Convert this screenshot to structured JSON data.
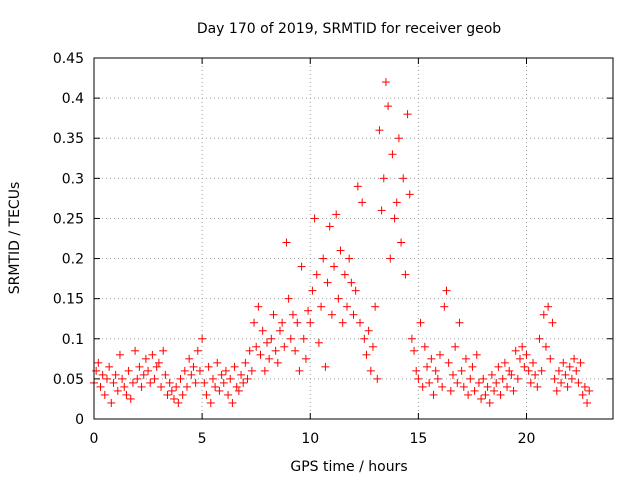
{
  "chart_data": {
    "type": "scatter",
    "title": "Day 170 of 2019, SRMTID for receiver geob",
    "xlabel": "GPS time / hours",
    "ylabel": "SRMTID / TECUs",
    "xlim": [
      0,
      24
    ],
    "ylim": [
      0,
      0.45
    ],
    "xticks": [
      0,
      5,
      10,
      15,
      20
    ],
    "xtick_labels": [
      "0",
      "5",
      "10",
      "15",
      "20"
    ],
    "yticks": [
      0,
      0.05,
      0.1,
      0.15,
      0.2,
      0.25,
      0.3,
      0.35,
      0.4,
      0.45
    ],
    "ytick_labels": [
      "0",
      "0.05",
      "0.1",
      "0.15",
      "0.2",
      "0.25",
      "0.3",
      "0.35",
      "0.4",
      "0.45"
    ],
    "grid": true,
    "marker": "plus",
    "color": "#ff0000",
    "series": [
      {
        "name": "SRMTID",
        "points": [
          [
            0.0,
            0.045
          ],
          [
            0.1,
            0.06
          ],
          [
            0.2,
            0.07
          ],
          [
            0.3,
            0.04
          ],
          [
            0.4,
            0.055
          ],
          [
            0.5,
            0.03
          ],
          [
            0.6,
            0.05
          ],
          [
            0.7,
            0.065
          ],
          [
            0.8,
            0.02
          ],
          [
            0.9,
            0.045
          ],
          [
            1.0,
            0.055
          ],
          [
            1.1,
            0.035
          ],
          [
            1.2,
            0.08
          ],
          [
            1.3,
            0.05
          ],
          [
            1.4,
            0.04
          ],
          [
            1.5,
            0.03
          ],
          [
            1.6,
            0.06
          ],
          [
            1.7,
            0.025
          ],
          [
            1.8,
            0.045
          ],
          [
            1.9,
            0.085
          ],
          [
            2.0,
            0.05
          ],
          [
            2.1,
            0.065
          ],
          [
            2.2,
            0.04
          ],
          [
            2.3,
            0.055
          ],
          [
            2.4,
            0.075
          ],
          [
            2.5,
            0.06
          ],
          [
            2.6,
            0.045
          ],
          [
            2.7,
            0.08
          ],
          [
            2.8,
            0.05
          ],
          [
            2.9,
            0.065
          ],
          [
            3.0,
            0.07
          ],
          [
            3.1,
            0.04
          ],
          [
            3.2,
            0.085
          ],
          [
            3.3,
            0.055
          ],
          [
            3.4,
            0.03
          ],
          [
            3.5,
            0.045
          ],
          [
            3.6,
            0.035
          ],
          [
            3.7,
            0.025
          ],
          [
            3.8,
            0.04
          ],
          [
            3.9,
            0.02
          ],
          [
            4.0,
            0.05
          ],
          [
            4.1,
            0.03
          ],
          [
            4.2,
            0.06
          ],
          [
            4.3,
            0.04
          ],
          [
            4.4,
            0.075
          ],
          [
            4.5,
            0.055
          ],
          [
            4.6,
            0.065
          ],
          [
            4.7,
            0.045
          ],
          [
            4.8,
            0.085
          ],
          [
            4.9,
            0.06
          ],
          [
            5.0,
            0.1
          ],
          [
            5.1,
            0.045
          ],
          [
            5.2,
            0.03
          ],
          [
            5.3,
            0.065
          ],
          [
            5.4,
            0.02
          ],
          [
            5.5,
            0.05
          ],
          [
            5.6,
            0.04
          ],
          [
            5.7,
            0.07
          ],
          [
            5.8,
            0.035
          ],
          [
            5.9,
            0.055
          ],
          [
            6.0,
            0.045
          ],
          [
            6.1,
            0.06
          ],
          [
            6.2,
            0.03
          ],
          [
            6.3,
            0.05
          ],
          [
            6.4,
            0.02
          ],
          [
            6.5,
            0.065
          ],
          [
            6.6,
            0.04
          ],
          [
            6.7,
            0.035
          ],
          [
            6.8,
            0.055
          ],
          [
            6.9,
            0.045
          ],
          [
            7.0,
            0.07
          ],
          [
            7.1,
            0.05
          ],
          [
            7.2,
            0.085
          ],
          [
            7.3,
            0.06
          ],
          [
            7.4,
            0.12
          ],
          [
            7.5,
            0.09
          ],
          [
            7.6,
            0.14
          ],
          [
            7.7,
            0.08
          ],
          [
            7.8,
            0.11
          ],
          [
            7.9,
            0.06
          ],
          [
            8.0,
            0.095
          ],
          [
            8.1,
            0.075
          ],
          [
            8.2,
            0.1
          ],
          [
            8.3,
            0.13
          ],
          [
            8.4,
            0.085
          ],
          [
            8.5,
            0.07
          ],
          [
            8.6,
            0.11
          ],
          [
            8.7,
            0.12
          ],
          [
            8.8,
            0.09
          ],
          [
            8.9,
            0.22
          ],
          [
            9.0,
            0.15
          ],
          [
            9.1,
            0.1
          ],
          [
            9.2,
            0.13
          ],
          [
            9.3,
            0.085
          ],
          [
            9.4,
            0.12
          ],
          [
            9.5,
            0.06
          ],
          [
            9.6,
            0.19
          ],
          [
            9.7,
            0.1
          ],
          [
            9.8,
            0.075
          ],
          [
            9.9,
            0.135
          ],
          [
            10.0,
            0.12
          ],
          [
            10.1,
            0.16
          ],
          [
            10.2,
            0.25
          ],
          [
            10.3,
            0.18
          ],
          [
            10.4,
            0.095
          ],
          [
            10.5,
            0.14
          ],
          [
            10.6,
            0.2
          ],
          [
            10.7,
            0.065
          ],
          [
            10.8,
            0.17
          ],
          [
            10.9,
            0.24
          ],
          [
            11.0,
            0.13
          ],
          [
            11.1,
            0.19
          ],
          [
            11.2,
            0.255
          ],
          [
            11.3,
            0.15
          ],
          [
            11.4,
            0.21
          ],
          [
            11.5,
            0.12
          ],
          [
            11.6,
            0.18
          ],
          [
            11.7,
            0.14
          ],
          [
            11.8,
            0.2
          ],
          [
            11.9,
            0.17
          ],
          [
            12.0,
            0.13
          ],
          [
            12.1,
            0.16
          ],
          [
            12.2,
            0.29
          ],
          [
            12.3,
            0.12
          ],
          [
            12.4,
            0.27
          ],
          [
            12.5,
            0.1
          ],
          [
            12.6,
            0.08
          ],
          [
            12.7,
            0.11
          ],
          [
            12.8,
            0.06
          ],
          [
            12.9,
            0.09
          ],
          [
            13.0,
            0.14
          ],
          [
            13.1,
            0.05
          ],
          [
            13.2,
            0.36
          ],
          [
            13.3,
            0.26
          ],
          [
            13.4,
            0.3
          ],
          [
            13.5,
            0.42
          ],
          [
            13.6,
            0.39
          ],
          [
            13.7,
            0.2
          ],
          [
            13.8,
            0.33
          ],
          [
            13.9,
            0.25
          ],
          [
            14.0,
            0.27
          ],
          [
            14.1,
            0.35
          ],
          [
            14.2,
            0.22
          ],
          [
            14.3,
            0.3
          ],
          [
            14.4,
            0.18
          ],
          [
            14.5,
            0.38
          ],
          [
            14.6,
            0.28
          ],
          [
            14.7,
            0.1
          ],
          [
            14.8,
            0.085
          ],
          [
            14.9,
            0.06
          ],
          [
            15.0,
            0.05
          ],
          [
            15.1,
            0.12
          ],
          [
            15.2,
            0.04
          ],
          [
            15.3,
            0.09
          ],
          [
            15.4,
            0.065
          ],
          [
            15.5,
            0.045
          ],
          [
            15.6,
            0.075
          ],
          [
            15.7,
            0.03
          ],
          [
            15.8,
            0.06
          ],
          [
            15.9,
            0.05
          ],
          [
            16.0,
            0.08
          ],
          [
            16.1,
            0.04
          ],
          [
            16.2,
            0.14
          ],
          [
            16.3,
            0.16
          ],
          [
            16.4,
            0.07
          ],
          [
            16.5,
            0.035
          ],
          [
            16.6,
            0.055
          ],
          [
            16.7,
            0.09
          ],
          [
            16.8,
            0.045
          ],
          [
            16.9,
            0.12
          ],
          [
            17.0,
            0.06
          ],
          [
            17.1,
            0.04
          ],
          [
            17.2,
            0.075
          ],
          [
            17.3,
            0.03
          ],
          [
            17.4,
            0.05
          ],
          [
            17.5,
            0.065
          ],
          [
            17.6,
            0.035
          ],
          [
            17.7,
            0.08
          ],
          [
            17.8,
            0.045
          ],
          [
            17.9,
            0.025
          ],
          [
            18.0,
            0.05
          ],
          [
            18.1,
            0.03
          ],
          [
            18.2,
            0.04
          ],
          [
            18.3,
            0.02
          ],
          [
            18.4,
            0.055
          ],
          [
            18.5,
            0.035
          ],
          [
            18.6,
            0.045
          ],
          [
            18.7,
            0.065
          ],
          [
            18.8,
            0.03
          ],
          [
            18.9,
            0.05
          ],
          [
            19.0,
            0.07
          ],
          [
            19.1,
            0.04
          ],
          [
            19.2,
            0.06
          ],
          [
            19.3,
            0.055
          ],
          [
            19.4,
            0.035
          ],
          [
            19.5,
            0.085
          ],
          [
            19.6,
            0.05
          ],
          [
            19.7,
            0.075
          ],
          [
            19.8,
            0.09
          ],
          [
            19.9,
            0.065
          ],
          [
            20.0,
            0.08
          ],
          [
            20.1,
            0.06
          ],
          [
            20.2,
            0.045
          ],
          [
            20.3,
            0.07
          ],
          [
            20.4,
            0.055
          ],
          [
            20.5,
            0.04
          ],
          [
            20.6,
            0.1
          ],
          [
            20.7,
            0.06
          ],
          [
            20.8,
            0.13
          ],
          [
            20.9,
            0.09
          ],
          [
            21.0,
            0.14
          ],
          [
            21.1,
            0.075
          ],
          [
            21.2,
            0.12
          ],
          [
            21.3,
            0.05
          ],
          [
            21.4,
            0.035
          ],
          [
            21.5,
            0.06
          ],
          [
            21.6,
            0.045
          ],
          [
            21.7,
            0.07
          ],
          [
            21.8,
            0.055
          ],
          [
            21.9,
            0.04
          ],
          [
            22.0,
            0.065
          ],
          [
            22.1,
            0.05
          ],
          [
            22.2,
            0.075
          ],
          [
            22.3,
            0.06
          ],
          [
            22.4,
            0.045
          ],
          [
            22.5,
            0.07
          ],
          [
            22.6,
            0.03
          ],
          [
            22.7,
            0.04
          ],
          [
            22.8,
            0.02
          ],
          [
            22.9,
            0.035
          ]
        ]
      }
    ]
  }
}
